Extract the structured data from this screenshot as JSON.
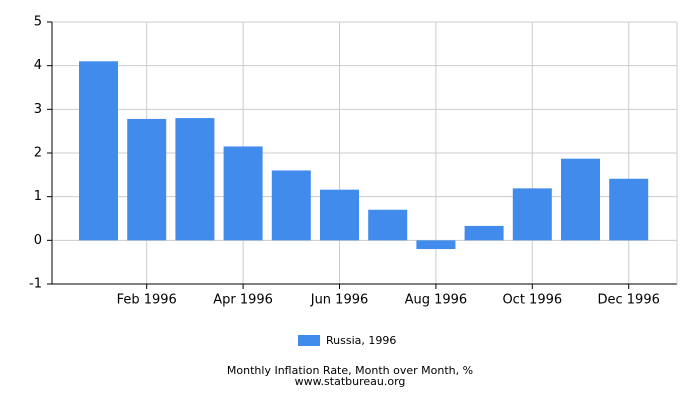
{
  "chart_data": {
    "type": "bar",
    "title": "Monthly Inflation Rate, Month over Month, %",
    "subtitle": "www.statbureau.org",
    "categories": [
      null,
      "Feb 1996",
      null,
      "Apr 1996",
      null,
      "Jun 1996",
      null,
      "Aug 1996",
      null,
      "Oct 1996",
      null,
      "Dec 1996"
    ],
    "series": [
      {
        "name": "Russia, 1996",
        "color": "#418bed",
        "values": [
          4.1,
          2.78,
          2.8,
          2.15,
          1.6,
          1.16,
          0.7,
          -0.2,
          0.33,
          1.19,
          1.87,
          1.41
        ]
      }
    ],
    "ylim": [
      -1,
      5
    ],
    "yticks": [
      -1,
      0,
      1,
      2,
      3,
      4,
      5
    ],
    "grid": true
  }
}
